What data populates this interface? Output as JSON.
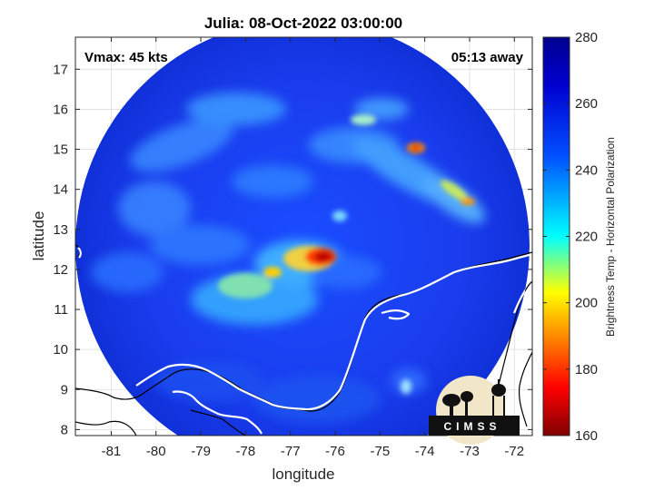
{
  "title": "Julia: 08-Oct-2022 03:00:00",
  "annotations": {
    "vmax": "Vmax: 45 kts",
    "time_away": "05:13 away"
  },
  "axes": {
    "xlabel": "longitude",
    "ylabel": "latitude",
    "xticks": [
      "-81",
      "-80",
      "-79",
      "-78",
      "-77",
      "-76",
      "-75",
      "-74",
      "-73",
      "-72"
    ],
    "yticks": [
      "8",
      "9",
      "10",
      "11",
      "12",
      "13",
      "14",
      "15",
      "16",
      "17"
    ],
    "xlim": [
      -81.8,
      -71.6
    ],
    "ylim": [
      7.85,
      17.8
    ]
  },
  "colorbar": {
    "label": "Brightness Temp - Horizontal Polarization",
    "ticks": [
      "280",
      "260",
      "240",
      "220",
      "200",
      "180",
      "160"
    ],
    "range": [
      160,
      280
    ],
    "colormap": [
      "#7f0000",
      "#ff0000",
      "#ffff00",
      "#00ffff",
      "#0000ff",
      "#00008f"
    ]
  },
  "logo": {
    "text": "CIMSS"
  },
  "chart_data": {
    "type": "heatmap",
    "title": "Julia: 08-Oct-2022 03:00:00",
    "xlabel": "longitude",
    "ylabel": "latitude",
    "xlim": [
      -81.8,
      -71.6
    ],
    "ylim": [
      7.85,
      17.8
    ],
    "grid": true,
    "swath_center": [
      -76.5,
      12.6
    ],
    "swath_radius_deg": 5.2,
    "min_temp_location": [
      -76.3,
      12.3
    ]
  }
}
